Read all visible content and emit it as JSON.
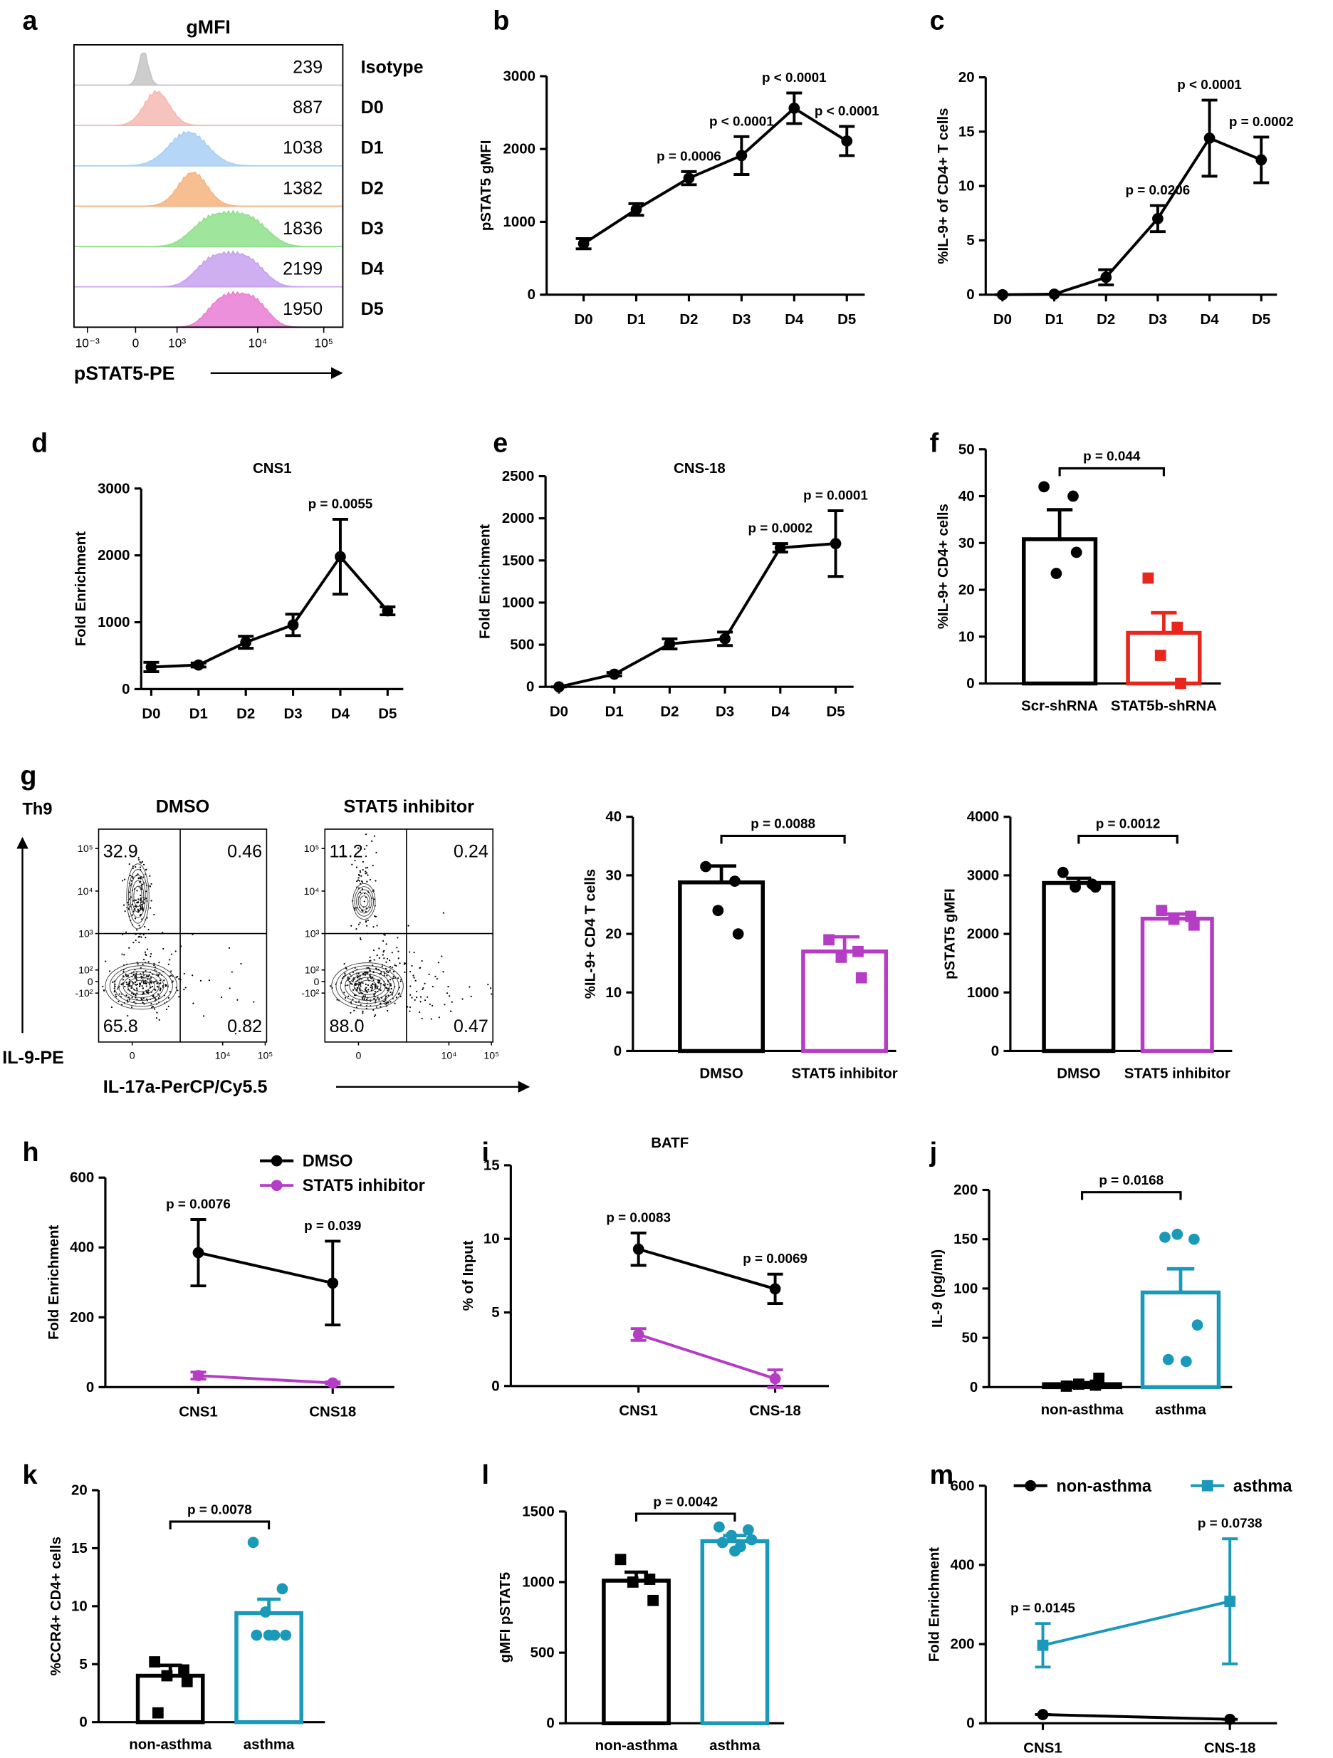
{
  "chart_data": [
    {
      "panel": "a",
      "type": "histogram-overlay",
      "title": "gMFI",
      "xlabel": "pSTAT5-PE",
      "xticks": [
        {
          "value": 0.001,
          "label": "10⁻³"
        },
        0,
        {
          "value": 1000,
          "label": "10³"
        },
        {
          "value": 10000,
          "label": "10⁴"
        },
        {
          "value": 100000,
          "label": "10⁵"
        }
      ],
      "rows": [
        {
          "name": "Isotype",
          "value": 239,
          "color": "#c4c4c4"
        },
        {
          "name": "D0",
          "value": 887,
          "color": "#f6b8b1"
        },
        {
          "name": "D1",
          "value": 1038,
          "color": "#a8cff4"
        },
        {
          "name": "D2",
          "value": 1382,
          "color": "#f6b47e"
        },
        {
          "name": "D3",
          "value": 1836,
          "color": "#8fe08b"
        },
        {
          "name": "D4",
          "value": 2199,
          "color": "#c6a1ee"
        },
        {
          "name": "D5",
          "value": 1950,
          "color": "#ea7dd6"
        }
      ]
    },
    {
      "panel": "b",
      "type": "line",
      "ylabel": "pSTAT5 gMFI",
      "categories": [
        "D0",
        "D1",
        "D2",
        "D3",
        "D4",
        "D5"
      ],
      "ylim": [
        0,
        3000
      ],
      "yticks": [
        0,
        1000,
        2000,
        3000
      ],
      "series": [
        {
          "color": "#000000",
          "values": [
            700,
            1170,
            1600,
            1910,
            2560,
            2110
          ],
          "errors": [
            70,
            80,
            90,
            260,
            210,
            200
          ]
        }
      ],
      "annotations": [
        {
          "category": "D2",
          "text": "p = 0.0006"
        },
        {
          "category": "D3",
          "text": "p < 0.0001"
        },
        {
          "category": "D4",
          "text": "p < 0.0001"
        },
        {
          "category": "D5",
          "text": "p < 0.0001"
        }
      ]
    },
    {
      "panel": "c",
      "type": "line",
      "ylabel": "%IL-9+ of CD4+ T cells",
      "categories": [
        "D0",
        "D1",
        "D2",
        "D3",
        "D4",
        "D5"
      ],
      "ylim": [
        0,
        20
      ],
      "yticks": [
        0,
        5,
        10,
        15,
        20
      ],
      "series": [
        {
          "color": "#000000",
          "values": [
            0,
            0.05,
            1.6,
            7.0,
            14.4,
            12.4
          ],
          "errors": [
            0,
            0,
            0.7,
            1.2,
            3.5,
            2.1
          ]
        }
      ],
      "annotations": [
        {
          "category": "D3",
          "text": "p = 0.0206"
        },
        {
          "category": "D4",
          "text": "p < 0.0001"
        },
        {
          "category": "D5",
          "text": "p = 0.0002"
        }
      ]
    },
    {
      "panel": "d",
      "type": "line",
      "title": "CNS1",
      "ylabel": "Fold Enrichment",
      "categories": [
        "D0",
        "D1",
        "D2",
        "D3",
        "D4",
        "D5"
      ],
      "ylim": [
        0,
        3000
      ],
      "yticks": [
        0,
        1000,
        2000,
        3000
      ],
      "series": [
        {
          "color": "#000000",
          "values": [
            330,
            360,
            700,
            960,
            1980,
            1170
          ],
          "errors": [
            70,
            30,
            90,
            160,
            560,
            60
          ]
        }
      ],
      "annotations": [
        {
          "category": "D4",
          "text": "p = 0.0055"
        }
      ]
    },
    {
      "panel": "e",
      "type": "line",
      "title": "CNS-18",
      "ylabel": "Fold Enrichment",
      "categories": [
        "D0",
        "D1",
        "D2",
        "D3",
        "D4",
        "D5"
      ],
      "ylim": [
        0,
        2500
      ],
      "yticks": [
        0,
        500,
        1000,
        1500,
        2000,
        2500
      ],
      "series": [
        {
          "color": "#000000",
          "values": [
            0,
            150,
            510,
            570,
            1650,
            1700
          ],
          "errors": [
            0,
            20,
            60,
            80,
            50,
            390
          ]
        }
      ],
      "annotations": [
        {
          "category": "D4",
          "text": "p = 0.0002"
        },
        {
          "category": "D5",
          "text": "p = 0.0001"
        }
      ]
    },
    {
      "panel": "f",
      "type": "bar",
      "ylabel": "%IL-9+ CD4+ cells",
      "categories": [
        "Scr-shRNA",
        "STAT5b-shRNA"
      ],
      "values": [
        30.8,
        10.8
      ],
      "errors": [
        6.3,
        4.3
      ],
      "colors": [
        "#000000",
        "#e8261c"
      ],
      "markers": [
        "circle",
        "square"
      ],
      "points": [
        [
          42,
          40,
          23.5,
          28
        ],
        [
          22.5,
          12,
          6,
          0
        ]
      ],
      "ylim": [
        0,
        50
      ],
      "yticks": [
        0,
        10,
        20,
        30,
        40,
        50
      ],
      "p_value": "p = 0.044"
    },
    {
      "panel": "g",
      "type": "flow-contour",
      "title": "Th9",
      "ylabel": "IL-9-PE",
      "xlabel": "IL-17a-PerCP/Cy5.5",
      "yticks": [
        {
          "value": 100000,
          "label": "10⁵"
        },
        {
          "value": 10000,
          "label": "10⁴"
        },
        {
          "value": 1000,
          "label": "10³"
        },
        {
          "value": 100,
          "label": "10²"
        },
        0,
        {
          "value": -100,
          "label": "-10²"
        }
      ],
      "xticks": [
        0,
        {
          "value": 10000,
          "label": "10⁴"
        },
        {
          "value": 100000,
          "label": "10⁵"
        }
      ],
      "plots": [
        {
          "title": "DMSO",
          "quadrants": [
            32.9,
            0.46,
            65.8,
            0.82
          ]
        },
        {
          "title": "STAT5 inhibitor",
          "quadrants": [
            11.2,
            0.24,
            88,
            0.47
          ],
          "quadrant_labels": [
            "11.2",
            "0.24",
            "88.0",
            "0.47"
          ]
        }
      ]
    },
    {
      "type": "bar",
      "ylabel": "%IL-9+ CD4 T cells",
      "categories": [
        "DMSO",
        "STAT5 inhibitor"
      ],
      "values": [
        28.8,
        17.0
      ],
      "errors": [
        2.8,
        2.5
      ],
      "colors": [
        "#000000",
        "#b53cc4"
      ],
      "markers": [
        "circle",
        "square"
      ],
      "points": [
        [
          31.5,
          29,
          24,
          20
        ],
        [
          19,
          17,
          16,
          12.5
        ]
      ],
      "ylim": [
        0,
        40
      ],
      "yticks": [
        0,
        10,
        20,
        30,
        40
      ],
      "p_value": "p = 0.0088"
    },
    {
      "type": "bar",
      "ylabel": "pSTAT5 gMFI",
      "categories": [
        "DMSO",
        "STAT5 inhibitor"
      ],
      "values": [
        2870,
        2260
      ],
      "errors": [
        80,
        80
      ],
      "colors": [
        "#000000",
        "#b53cc4"
      ],
      "markers": [
        "circle",
        "square"
      ],
      "points": [
        [
          3050,
          2850,
          2800,
          2800
        ],
        [
          2400,
          2300,
          2250,
          2150
        ]
      ],
      "ylim": [
        0,
        4000
      ],
      "yticks": [
        0,
        1000,
        2000,
        3000,
        4000
      ],
      "p_value": "p = 0.0012"
    },
    {
      "panel": "h",
      "type": "line",
      "ylabel": "Fold Enrichment",
      "categories": [
        "CNS1",
        "CNS18"
      ],
      "legend": "upper right",
      "ylim": [
        0,
        600
      ],
      "yticks": [
        0,
        200,
        400,
        600
      ],
      "series": [
        {
          "name": "DMSO",
          "color": "#000000",
          "values": [
            385,
            298
          ],
          "errors": [
            95,
            120
          ]
        },
        {
          "name": "STAT5 inhibitor",
          "color": "#b53cc4",
          "values": [
            33,
            12
          ],
          "errors": [
            10,
            3
          ]
        }
      ],
      "annotations": [
        {
          "category": "CNS1",
          "text": "p = 0.0076"
        },
        {
          "category": "CNS18",
          "text": "p = 0.039"
        }
      ]
    },
    {
      "panel": "i",
      "type": "line",
      "title": "BATF",
      "ylabel": "% of Input",
      "categories": [
        "CNS1",
        "CNS-18"
      ],
      "ylim": [
        0,
        15
      ],
      "yticks": [
        0,
        5,
        10,
        15
      ],
      "series": [
        {
          "color": "#000000",
          "values": [
            9.3,
            6.6
          ],
          "errors": [
            1.1,
            1.0
          ]
        },
        {
          "color": "#b53cc4",
          "values": [
            3.5,
            0.5
          ],
          "errors": [
            0.4,
            0.6
          ]
        }
      ],
      "annotations": [
        {
          "category": "CNS1",
          "text": "p = 0.0083"
        },
        {
          "category": "CNS-18",
          "text": "p = 0.0069"
        }
      ]
    },
    {
      "panel": "j",
      "type": "bar",
      "ylabel": "IL-9 (pg/ml)",
      "categories": [
        "non-asthma",
        "asthma"
      ],
      "values": [
        3,
        96
      ],
      "errors": [
        1.5,
        24
      ],
      "colors": [
        "#000000",
        "#1a99b8"
      ],
      "markers": [
        "square",
        "circle"
      ],
      "points": [
        [
          1,
          2,
          3,
          9
        ],
        [
          152,
          150,
          155,
          63,
          28,
          26
        ]
      ],
      "ylim": [
        0,
        200
      ],
      "yticks": [
        0,
        50,
        100,
        150,
        200
      ],
      "p_value": "p = 0.0168"
    },
    {
      "panel": "k",
      "type": "bar",
      "ylabel": "%CCR4+ CD4+ cells",
      "categories": [
        "non-asthma",
        "asthma"
      ],
      "values": [
        4.0,
        9.4
      ],
      "errors": [
        0.9,
        1.2
      ],
      "colors": [
        "#000000",
        "#1a99b8"
      ],
      "markers": [
        "square",
        "circle"
      ],
      "points": [
        [
          5.2,
          4.5,
          4.0,
          3.5,
          0.8
        ],
        [
          15.5,
          11.5,
          9.5,
          7.5,
          7.5,
          7.5,
          7.5
        ]
      ],
      "ylim": [
        0,
        20
      ],
      "yticks": [
        0,
        5,
        10,
        15,
        20
      ],
      "p_value": "p = 0.0078"
    },
    {
      "panel": "l",
      "type": "bar",
      "ylabel": "gMFI pSTAT5",
      "categories": [
        "non-asthma",
        "asthma"
      ],
      "values": [
        1010,
        1290
      ],
      "errors": [
        60,
        40
      ],
      "colors": [
        "#000000",
        "#1a99b8"
      ],
      "markers": [
        "square",
        "circle"
      ],
      "points": [
        [
          1160,
          1020,
          1000,
          870
        ],
        [
          1390,
          1370,
          1330,
          1300,
          1280,
          1250,
          1220
        ]
      ],
      "ylim": [
        0,
        1500
      ],
      "yticks": [
        0,
        500,
        1000,
        1500
      ],
      "p_value": "p = 0.0042"
    },
    {
      "panel": "m",
      "type": "line",
      "ylabel": "Fold Enrichment",
      "categories": [
        "CNS1",
        "CNS-18"
      ],
      "legend": "top",
      "ylim": [
        0,
        600
      ],
      "yticks": [
        0,
        200,
        400,
        600
      ],
      "series": [
        {
          "name": "non-asthma",
          "color": "#000000",
          "marker": "circle",
          "values": [
            22,
            10
          ],
          "errors": [
            0,
            0
          ]
        },
        {
          "name": "asthma",
          "color": "#1a99b8",
          "marker": "square",
          "values": [
            197,
            308
          ],
          "errors": [
            55,
            158
          ]
        }
      ],
      "annotations": [
        {
          "category": "CNS1",
          "text": "p = 0.0145"
        },
        {
          "category": "CNS-18",
          "text": "p = 0.0738"
        }
      ]
    }
  ]
}
